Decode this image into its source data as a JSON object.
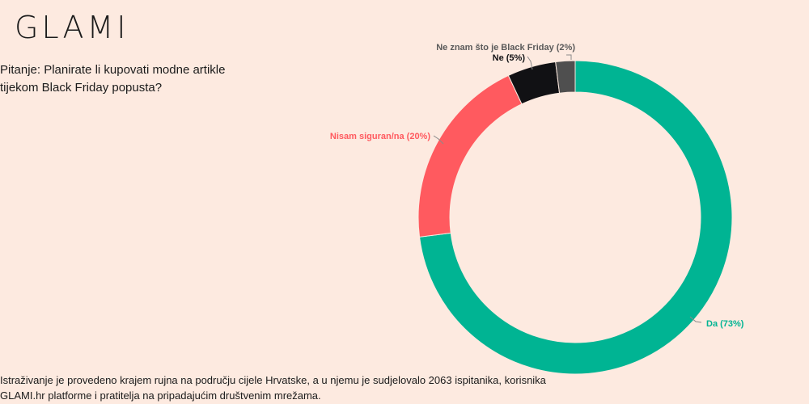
{
  "brand": {
    "logo_text": "GLAMI"
  },
  "question": "Pitanje: Planirate li kupovati modne artikle tijekom Black Friday popusta?",
  "footnote": "Istraživanje je provedeno krajem rujna na području cijele Hrvatske, a u njemu je sudjelovalo 2063 ispitanika, korisnika GLAMI.hr platforme i pratitelja na pripadajućim društvenim mrežama.",
  "chart_data": {
    "type": "pie",
    "subtype": "donut",
    "title": "",
    "slices": [
      {
        "label": "Da (73%)",
        "value": 73,
        "color": "#00b493",
        "label_color": "#00b493"
      },
      {
        "label": "Nisam siguran/na (20%)",
        "value": 20,
        "color": "#ff5a5f",
        "label_color": "#ff5a5f"
      },
      {
        "label": "Ne (5%)",
        "value": 5,
        "color": "#111114",
        "label_color": "#111114"
      },
      {
        "label": "Ne znam što je Black Friday (2%)",
        "value": 2,
        "color": "#4f4f4f",
        "label_color": "#5a5a5a"
      }
    ]
  }
}
